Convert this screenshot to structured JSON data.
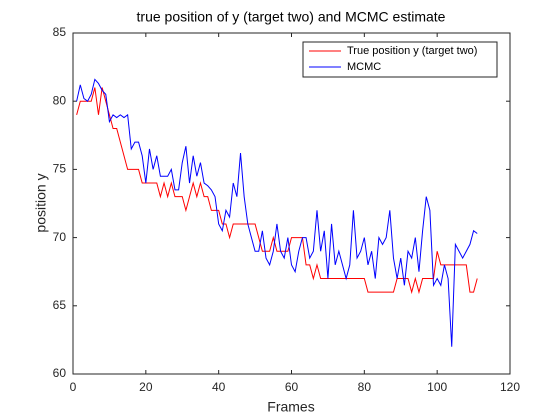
{
  "chart_data": {
    "type": "line",
    "title": "true position of y (target two) and MCMC estimate",
    "x_label": "Frames",
    "y_label": "position y",
    "x": [
      1,
      2,
      3,
      4,
      5,
      6,
      7,
      8,
      9,
      10,
      11,
      12,
      13,
      14,
      15,
      16,
      17,
      18,
      19,
      20,
      21,
      22,
      23,
      24,
      25,
      26,
      27,
      28,
      29,
      30,
      31,
      32,
      33,
      34,
      35,
      36,
      37,
      38,
      39,
      40,
      41,
      42,
      43,
      44,
      45,
      46,
      47,
      48,
      49,
      50,
      51,
      52,
      53,
      54,
      55,
      56,
      57,
      58,
      59,
      60,
      61,
      62,
      63,
      64,
      65,
      66,
      67,
      68,
      69,
      70,
      71,
      72,
      73,
      74,
      75,
      76,
      77,
      78,
      79,
      80,
      81,
      82,
      83,
      84,
      85,
      86,
      87,
      88,
      89,
      90,
      91,
      92,
      93,
      94,
      95,
      96,
      97,
      98,
      99,
      100,
      101,
      102,
      103,
      104,
      105,
      106,
      107,
      108,
      109,
      110,
      111
    ],
    "series": [
      {
        "name": "True position y (target two)",
        "color": "#ff0000",
        "values": [
          79,
          80,
          80,
          80,
          80,
          81,
          79,
          81,
          80,
          79,
          78,
          78,
          77,
          76,
          75,
          75,
          75,
          75,
          74,
          74,
          74,
          74,
          74,
          73,
          74,
          73,
          74,
          73,
          73,
          73,
          72,
          73,
          74,
          73,
          74,
          73,
          73,
          72,
          72,
          72,
          71,
          71,
          70,
          71,
          71,
          71,
          71,
          71,
          71,
          71,
          70,
          69,
          69,
          69,
          70,
          69,
          69,
          69,
          69,
          70,
          70,
          70,
          70,
          68,
          68,
          67,
          68,
          67,
          67,
          67,
          67,
          67,
          67,
          67,
          67,
          67,
          67,
          67,
          67,
          67,
          66,
          66,
          66,
          66,
          66,
          66,
          66,
          66,
          67,
          67,
          67,
          67,
          66,
          67,
          66,
          67,
          67,
          67,
          67,
          69,
          68,
          68,
          68,
          68,
          68,
          68,
          68,
          68,
          66,
          66,
          67
        ]
      },
      {
        "name": "MCMC",
        "color": "#0000ff",
        "values": [
          80,
          81.2,
          80.2,
          80,
          80.5,
          81.6,
          81.3,
          80.8,
          80.5,
          78.5,
          79,
          78.8,
          79,
          78.8,
          79,
          76.5,
          77,
          77,
          76,
          74,
          76.5,
          75,
          76,
          74.5,
          74.5,
          74.5,
          75,
          73.5,
          73.5,
          75.5,
          76.7,
          74,
          76,
          74.5,
          75.5,
          74,
          73.8,
          73.5,
          73,
          71,
          70.5,
          72,
          71.5,
          74,
          73,
          76.2,
          73,
          71,
          70,
          69,
          69,
          70.5,
          68.5,
          68,
          69,
          71,
          69,
          68.5,
          70,
          68,
          67.5,
          69,
          70,
          70,
          68.5,
          69,
          72,
          69,
          70.5,
          67,
          71,
          68,
          69,
          68,
          67,
          68,
          72,
          68.5,
          69,
          70,
          68,
          69,
          67,
          70,
          69.5,
          70,
          72,
          68.5,
          67,
          68.5,
          66.5,
          69,
          68.5,
          70,
          67.5,
          70.5,
          73,
          72,
          66.5,
          67,
          66.5,
          68,
          67,
          62,
          69.5,
          69,
          68.5,
          69,
          69.5,
          70.5,
          70.3
        ]
      }
    ],
    "xlim": [
      0,
      120
    ],
    "xticks": [
      0,
      20,
      40,
      60,
      80,
      100,
      120
    ],
    "ylim": [
      60,
      85
    ],
    "yticks": [
      60,
      65,
      70,
      75,
      80,
      85
    ],
    "legend": "northeast",
    "grid": false
  }
}
